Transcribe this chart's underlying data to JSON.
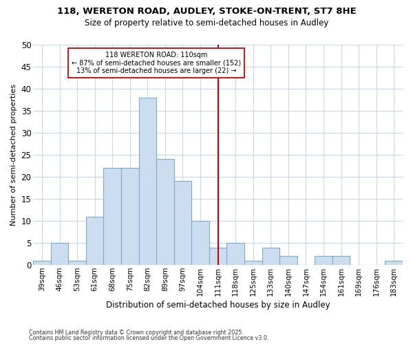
{
  "title1": "118, WERETON ROAD, AUDLEY, STOKE-ON-TRENT, ST7 8HE",
  "title2": "Size of property relative to semi-detached houses in Audley",
  "xlabel": "Distribution of semi-detached houses by size in Audley",
  "ylabel": "Number of semi-detached properties",
  "categories": [
    "39sqm",
    "46sqm",
    "53sqm",
    "61sqm",
    "68sqm",
    "75sqm",
    "82sqm",
    "89sqm",
    "97sqm",
    "104sqm",
    "111sqm",
    "118sqm",
    "125sqm",
    "133sqm",
    "140sqm",
    "147sqm",
    "154sqm",
    "161sqm",
    "169sqm",
    "176sqm",
    "183sqm"
  ],
  "values": [
    1,
    5,
    1,
    11,
    22,
    22,
    38,
    24,
    19,
    10,
    4,
    5,
    1,
    4,
    2,
    0,
    2,
    2,
    0,
    0,
    1
  ],
  "property_line_index": 10,
  "property_size": "110sqm",
  "pct_smaller": 87,
  "n_smaller": 152,
  "pct_larger": 13,
  "n_larger": 22,
  "bar_color": "#ccddef",
  "bar_edge_color": "#7aaacf",
  "line_color": "#cc0000",
  "box_edge_color": "#cc0000",
  "background_color": "#ffffff",
  "grid_color": "#c8d8e8",
  "ylim": [
    0,
    50
  ],
  "yticks": [
    0,
    5,
    10,
    15,
    20,
    25,
    30,
    35,
    40,
    45,
    50
  ],
  "footnote1": "Contains HM Land Registry data © Crown copyright and database right 2025.",
  "footnote2": "Contains public sector information licensed under the Open Government Licence v3.0.",
  "annot_box_line1": "118 WERETON ROAD: 110sqm",
  "annot_box_line2": "← 87% of semi-detached houses are smaller (152)",
  "annot_box_line3": "13% of semi-detached houses are larger (22) →"
}
